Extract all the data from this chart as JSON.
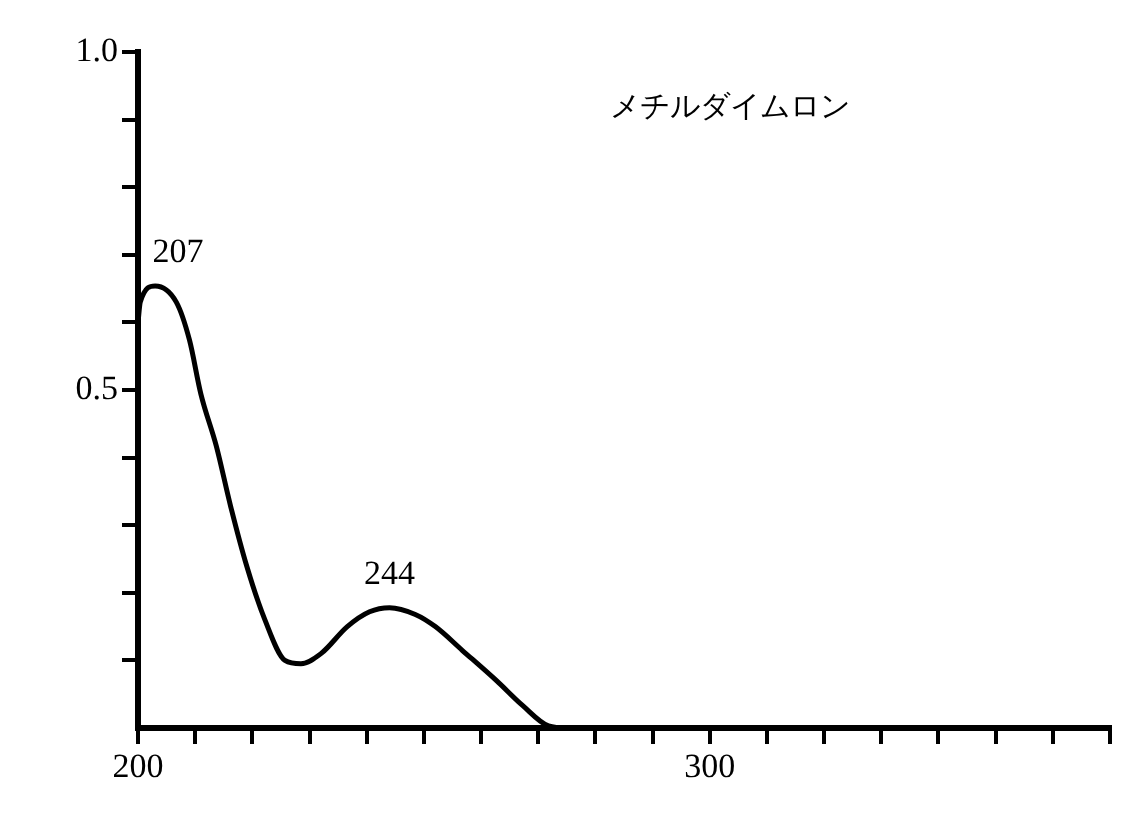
{
  "chart_data": {
    "type": "line",
    "title": "メチルダイムロン",
    "x": [
      200,
      200.4,
      203,
      206.7,
      209,
      211,
      213.7,
      216.2,
      219,
      222.2,
      225.7,
      228.5,
      232,
      236.6,
      240.5,
      244,
      248.5,
      252,
      256.7,
      262.7,
      267.3,
      271.8,
      275,
      300,
      340,
      370
    ],
    "series": [
      {
        "color": "#000000",
        "values": [
          0.6,
          0.63,
          0.654,
          0.63,
          0.574,
          0.494,
          0.417,
          0.328,
          0.24,
          0.16,
          0.1,
          0.095,
          0.11,
          0.15,
          0.172,
          0.178,
          0.168,
          0.15,
          0.115,
          0.07,
          0.033,
          0.003,
          0,
          0,
          0,
          0
        ]
      }
    ],
    "xlim": [
      200,
      370
    ],
    "ylim": [
      0,
      1
    ],
    "xticks": [
      200,
      {
        "value": 210,
        "label": null
      },
      {
        "value": 220,
        "label": null
      },
      {
        "value": 230,
        "label": null
      },
      {
        "value": 240,
        "label": null
      },
      {
        "value": 250,
        "label": null
      },
      {
        "value": 260,
        "label": null
      },
      {
        "value": 270,
        "label": null
      },
      {
        "value": 280,
        "label": null
      },
      {
        "value": 290,
        "label": null
      },
      300,
      {
        "value": 310,
        "label": null
      },
      {
        "value": 320,
        "label": null
      },
      {
        "value": 330,
        "label": null
      },
      {
        "value": 340,
        "label": null
      },
      {
        "value": 350,
        "label": null
      },
      {
        "value": 360,
        "label": null
      },
      {
        "value": 370,
        "label": null
      }
    ],
    "yticks": [
      {
        "value": 0.1,
        "label": null
      },
      {
        "value": 0.2,
        "label": null
      },
      {
        "value": 0.3,
        "label": null
      },
      {
        "value": 0.4,
        "label": null
      },
      0.5,
      {
        "value": 0.6,
        "label": null
      },
      {
        "value": 0.7,
        "label": null
      },
      {
        "value": 0.8,
        "label": null
      },
      {
        "value": 0.9,
        "label": null
      },
      {
        "value": 1,
        "label": "1.0"
      }
    ],
    "annotations": [
      {
        "text": "207",
        "x": 207,
        "y": 0.654
      },
      {
        "text": "244",
        "x": 244,
        "y": 0.178
      }
    ],
    "marker": "none",
    "line_style": "solid",
    "grid": false,
    "legend": false
  }
}
